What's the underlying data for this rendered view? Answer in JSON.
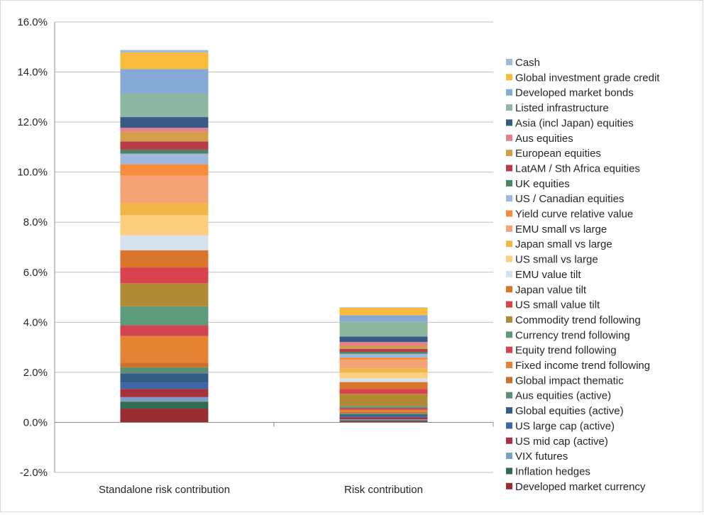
{
  "chart_data": {
    "type": "bar",
    "stacked": true,
    "categories": [
      "Standalone risk contribution",
      "Risk contribution"
    ],
    "y_ticks": [
      "-2.0%",
      "0.0%",
      "2.0%",
      "4.0%",
      "6.0%",
      "8.0%",
      "10.0%",
      "12.0%",
      "14.0%",
      "16.0%"
    ],
    "ylim": [
      -2,
      16
    ],
    "y_unit": "%",
    "grid": true,
    "legend_position": "right",
    "series": [
      {
        "name": "Developed market currency",
        "color": "#9b2d30",
        "values": [
          0.55,
          0.05
        ]
      },
      {
        "name": "Inflation hedges",
        "color": "#2f6b50",
        "values": [
          0.28,
          0.04
        ]
      },
      {
        "name": "VIX futures",
        "color": "#7e9dc6",
        "values": [
          0.18,
          0.03
        ]
      },
      {
        "name": "US mid cap (active)",
        "color": "#a4313b",
        "values": [
          0.33,
          0.08
        ]
      },
      {
        "name": "US large cap (active)",
        "color": "#3f67a8",
        "values": [
          0.24,
          0.05
        ]
      },
      {
        "name": "Global equities (active)",
        "color": "#355b87",
        "values": [
          0.38,
          0.06
        ]
      },
      {
        "name": "Aus equities (active)",
        "color": "#5a8f73",
        "values": [
          0.24,
          0.05
        ]
      },
      {
        "name": "Global impact thematic",
        "color": "#c8722b",
        "values": [
          0.19,
          0.06
        ]
      },
      {
        "name": "Fixed income trend following",
        "color": "#e58332",
        "values": [
          1.06,
          0.08
        ]
      },
      {
        "name": "Equity trend following",
        "color": "#d0454f",
        "values": [
          0.43,
          0.08
        ]
      },
      {
        "name": "Currency trend following",
        "color": "#5e9a7c",
        "values": [
          0.76,
          0.08
        ]
      },
      {
        "name": "Commodity trend following",
        "color": "#b18a35",
        "values": [
          0.92,
          0.48
        ]
      },
      {
        "name": "US small value tilt",
        "color": "#d9434d",
        "values": [
          0.63,
          0.2
        ]
      },
      {
        "name": "Japan value tilt",
        "color": "#d9762b",
        "values": [
          0.69,
          0.27
        ]
      },
      {
        "name": "EMU value tilt",
        "color": "#d6e1ee",
        "values": [
          0.6,
          0.15
        ]
      },
      {
        "name": "US small vs large",
        "color": "#fccf7e",
        "values": [
          0.8,
          0.23
        ]
      },
      {
        "name": "Japan small vs large",
        "color": "#f0b646",
        "values": [
          0.48,
          0.17
        ]
      },
      {
        "name": "EMU small vs large",
        "color": "#f4a374",
        "values": [
          1.1,
          0.34
        ]
      },
      {
        "name": "Yield curve relative value",
        "color": "#f68c3c",
        "values": [
          0.46,
          0.09
        ]
      },
      {
        "name": "US / Canadian equities",
        "color": "#9fb9dc",
        "values": [
          0.42,
          0.15
        ]
      },
      {
        "name": "UK equities",
        "color": "#4e8466",
        "values": [
          0.16,
          0.08
        ]
      },
      {
        "name": "LatAM / Sth Africa equities",
        "color": "#b93b45",
        "values": [
          0.33,
          0.12
        ]
      },
      {
        "name": "European equities",
        "color": "#d3a04a",
        "values": [
          0.38,
          0.12
        ]
      },
      {
        "name": "Aus equities",
        "color": "#e4828a",
        "values": [
          0.16,
          0.15
        ]
      },
      {
        "name": "Asia (incl Japan) equities",
        "color": "#3a5a86",
        "values": [
          0.43,
          0.22
        ]
      },
      {
        "name": "Listed infrastructure",
        "color": "#8db7a1",
        "values": [
          0.95,
          0.6
        ]
      },
      {
        "name": "Developed market bonds",
        "color": "#86a9d6",
        "values": [
          0.97,
          0.25
        ]
      },
      {
        "name": "Global investment grade credit",
        "color": "#f9bb3e",
        "values": [
          0.66,
          0.3
        ]
      },
      {
        "name": "Cash",
        "color": "#9dbcd8",
        "values": [
          0.1,
          0.02
        ]
      }
    ]
  }
}
